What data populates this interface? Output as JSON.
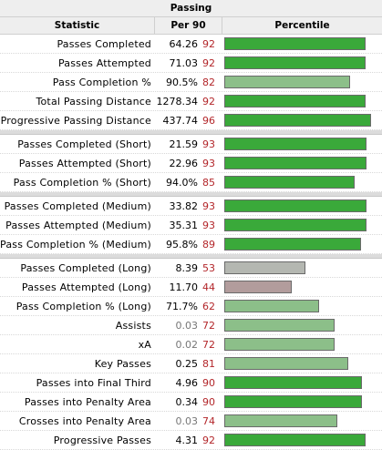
{
  "table": {
    "caption": "Passing",
    "headers": {
      "stat": "Statistic",
      "per90": "Per 90",
      "pct": "Percentile"
    },
    "colors": {
      "high": "#3aa93a",
      "mid": "#8cbf89",
      "low_gray": "#b4b7b1",
      "low_red": "#b29c9c"
    },
    "groups": [
      {
        "rows": [
          {
            "stat": "Passes Completed",
            "per90": "64.26",
            "percentile": "92",
            "fill": 0.92,
            "color": "#3aa93a"
          },
          {
            "stat": "Passes Attempted",
            "per90": "71.03",
            "percentile": "92",
            "fill": 0.92,
            "color": "#3aa93a"
          },
          {
            "stat": "Pass Completion %",
            "per90": "90.5%",
            "percentile": "82",
            "fill": 0.82,
            "color": "#8cbf89"
          },
          {
            "stat": "Total Passing Distance",
            "per90": "1278.34",
            "percentile": "92",
            "fill": 0.92,
            "color": "#3aa93a"
          },
          {
            "stat": "Progressive Passing Distance",
            "per90": "437.74",
            "percentile": "96",
            "fill": 0.96,
            "color": "#3aa93a"
          }
        ]
      },
      {
        "rows": [
          {
            "stat": "Passes Completed (Short)",
            "per90": "21.59",
            "percentile": "93",
            "fill": 0.93,
            "color": "#3aa93a"
          },
          {
            "stat": "Passes Attempted (Short)",
            "per90": "22.96",
            "percentile": "93",
            "fill": 0.93,
            "color": "#3aa93a"
          },
          {
            "stat": "Pass Completion % (Short)",
            "per90": "94.0%",
            "percentile": "85",
            "fill": 0.85,
            "color": "#3aa93a"
          }
        ]
      },
      {
        "rows": [
          {
            "stat": "Passes Completed (Medium)",
            "per90": "33.82",
            "percentile": "93",
            "fill": 0.93,
            "color": "#3aa93a"
          },
          {
            "stat": "Passes Attempted (Medium)",
            "per90": "35.31",
            "percentile": "93",
            "fill": 0.93,
            "color": "#3aa93a"
          },
          {
            "stat": "Pass Completion % (Medium)",
            "per90": "95.8%",
            "percentile": "89",
            "fill": 0.89,
            "color": "#3aa93a"
          }
        ]
      },
      {
        "rows": [
          {
            "stat": "Passes Completed (Long)",
            "per90": "8.39",
            "percentile": "53",
            "fill": 0.53,
            "color": "#b4b7b1"
          },
          {
            "stat": "Passes Attempted (Long)",
            "per90": "11.70",
            "percentile": "44",
            "fill": 0.44,
            "color": "#b29c9c"
          },
          {
            "stat": "Pass Completion % (Long)",
            "per90": "71.7%",
            "percentile": "62",
            "fill": 0.62,
            "color": "#8cbf89"
          },
          {
            "stat": "Assists",
            "per90": "0.03",
            "percentile": "72",
            "fill": 0.72,
            "color": "#8cbf89",
            "dim": true
          },
          {
            "stat": "xA",
            "per90": "0.02",
            "percentile": "72",
            "fill": 0.72,
            "color": "#8cbf89",
            "dim": true
          },
          {
            "stat": "Key Passes",
            "per90": "0.25",
            "percentile": "81",
            "fill": 0.81,
            "color": "#8cbf89"
          },
          {
            "stat": "Passes into Final Third",
            "per90": "4.96",
            "percentile": "90",
            "fill": 0.9,
            "color": "#3aa93a"
          },
          {
            "stat": "Passes into Penalty Area",
            "per90": "0.34",
            "percentile": "90",
            "fill": 0.9,
            "color": "#3aa93a"
          },
          {
            "stat": "Crosses into Penalty Area",
            "per90": "0.03",
            "percentile": "74",
            "fill": 0.74,
            "color": "#8cbf89",
            "dim": true
          },
          {
            "stat": "Progressive Passes",
            "per90": "4.31",
            "percentile": "92",
            "fill": 0.92,
            "color": "#3aa93a"
          }
        ]
      }
    ]
  }
}
